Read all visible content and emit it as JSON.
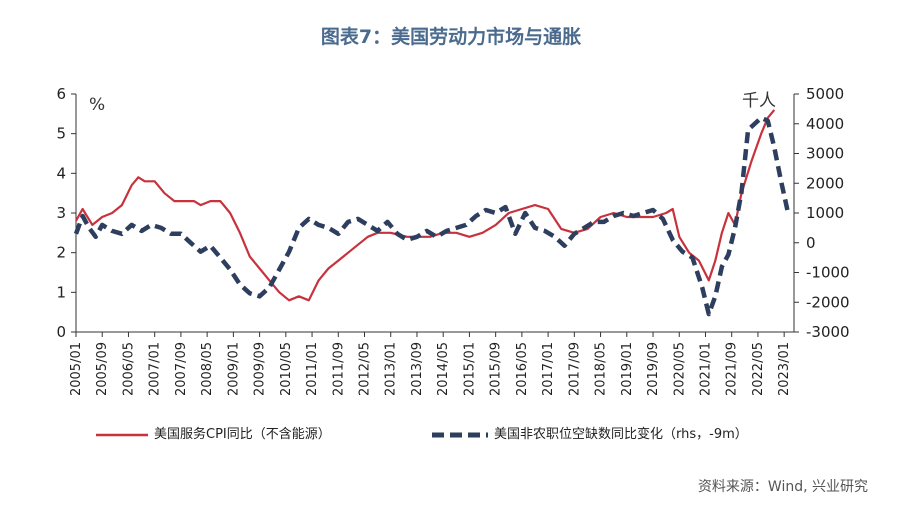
{
  "title": "图表7：美国劳动力市场与通胀",
  "source": "资料来源：Wind, 兴业研究",
  "chart_data": {
    "type": "line",
    "left_unit": "%",
    "right_unit": "千人",
    "left_axis": {
      "ylim": [
        0,
        6
      ],
      "ticks": [
        "0",
        "1",
        "2",
        "3",
        "4",
        "5",
        "6"
      ]
    },
    "right_axis": {
      "ylim": [
        -3000,
        5000
      ],
      "ticks": [
        "-3000",
        "-2000",
        "-1000",
        "0",
        "1000",
        "2000",
        "3000",
        "4000",
        "5000"
      ]
    },
    "x_ticks": [
      "2005/01",
      "2005/09",
      "2006/05",
      "2007/01",
      "2007/09",
      "2008/05",
      "2009/01",
      "2009/09",
      "2010/05",
      "2011/01",
      "2011/09",
      "2012/05",
      "2013/01",
      "2013/09",
      "2014/05",
      "2015/01",
      "2015/09",
      "2016/05",
      "2017/01",
      "2017/09",
      "2018/05",
      "2019/01",
      "2019/09",
      "2020/05",
      "2021/01",
      "2021/09",
      "2022/05",
      "2023/01"
    ],
    "series": [
      {
        "name": "美国服务CPI同比（不含能源）",
        "axis": "left",
        "color": "#c8323c",
        "style": "solid",
        "points": [
          [
            "2005/01",
            2.8
          ],
          [
            "2005/03",
            3.1
          ],
          [
            "2005/06",
            2.7
          ],
          [
            "2005/09",
            2.9
          ],
          [
            "2005/12",
            3.0
          ],
          [
            "2006/03",
            3.2
          ],
          [
            "2006/06",
            3.7
          ],
          [
            "2006/08",
            3.9
          ],
          [
            "2006/10",
            3.8
          ],
          [
            "2007/01",
            3.8
          ],
          [
            "2007/04",
            3.5
          ],
          [
            "2007/07",
            3.3
          ],
          [
            "2007/10",
            3.3
          ],
          [
            "2008/01",
            3.3
          ],
          [
            "2008/03",
            3.2
          ],
          [
            "2008/06",
            3.3
          ],
          [
            "2008/09",
            3.3
          ],
          [
            "2008/12",
            3.0
          ],
          [
            "2009/03",
            2.5
          ],
          [
            "2009/06",
            1.9
          ],
          [
            "2009/09",
            1.6
          ],
          [
            "2009/12",
            1.3
          ],
          [
            "2010/03",
            1.0
          ],
          [
            "2010/06",
            0.8
          ],
          [
            "2010/09",
            0.9
          ],
          [
            "2010/12",
            0.8
          ],
          [
            "2011/03",
            1.3
          ],
          [
            "2011/06",
            1.6
          ],
          [
            "2011/09",
            1.8
          ],
          [
            "2011/12",
            2.0
          ],
          [
            "2012/03",
            2.2
          ],
          [
            "2012/06",
            2.4
          ],
          [
            "2012/09",
            2.5
          ],
          [
            "2013/01",
            2.5
          ],
          [
            "2013/06",
            2.4
          ],
          [
            "2013/09",
            2.4
          ],
          [
            "2014/01",
            2.4
          ],
          [
            "2014/05",
            2.5
          ],
          [
            "2014/09",
            2.5
          ],
          [
            "2015/01",
            2.4
          ],
          [
            "2015/05",
            2.5
          ],
          [
            "2015/09",
            2.7
          ],
          [
            "2016/01",
            3.0
          ],
          [
            "2016/05",
            3.1
          ],
          [
            "2016/09",
            3.2
          ],
          [
            "2017/01",
            3.1
          ],
          [
            "2017/05",
            2.6
          ],
          [
            "2017/09",
            2.5
          ],
          [
            "2018/01",
            2.6
          ],
          [
            "2018/05",
            2.9
          ],
          [
            "2018/09",
            3.0
          ],
          [
            "2019/01",
            2.9
          ],
          [
            "2019/05",
            2.9
          ],
          [
            "2019/09",
            2.9
          ],
          [
            "2020/01",
            3.0
          ],
          [
            "2020/03",
            3.1
          ],
          [
            "2020/05",
            2.4
          ],
          [
            "2020/08",
            2.0
          ],
          [
            "2020/11",
            1.8
          ],
          [
            "2021/02",
            1.3
          ],
          [
            "2021/04",
            1.8
          ],
          [
            "2021/06",
            2.5
          ],
          [
            "2021/08",
            3.0
          ],
          [
            "2021/10",
            2.7
          ],
          [
            "2021/12",
            3.5
          ],
          [
            "2022/03",
            4.3
          ],
          [
            "2022/06",
            5.0
          ],
          [
            "2022/08",
            5.4
          ],
          [
            "2022/10",
            5.6
          ]
        ]
      },
      {
        "name": "美国非农职位空缺数同比变化（rhs，-9m）",
        "axis": "right",
        "color": "#2e3e5e",
        "style": "dashed",
        "points": [
          [
            "2005/01",
            300
          ],
          [
            "2005/03",
            900
          ],
          [
            "2005/05",
            500
          ],
          [
            "2005/07",
            200
          ],
          [
            "2005/09",
            600
          ],
          [
            "2005/12",
            400
          ],
          [
            "2006/03",
            300
          ],
          [
            "2006/06",
            600
          ],
          [
            "2006/09",
            400
          ],
          [
            "2006/12",
            600
          ],
          [
            "2007/03",
            500
          ],
          [
            "2007/06",
            300
          ],
          [
            "2007/09",
            300
          ],
          [
            "2007/12",
            0
          ],
          [
            "2008/03",
            -300
          ],
          [
            "2008/06",
            -100
          ],
          [
            "2008/09",
            -500
          ],
          [
            "2008/12",
            -900
          ],
          [
            "2009/03",
            -1400
          ],
          [
            "2009/06",
            -1700
          ],
          [
            "2009/09",
            -1800
          ],
          [
            "2009/12",
            -1500
          ],
          [
            "2010/03",
            -900
          ],
          [
            "2010/06",
            -300
          ],
          [
            "2010/09",
            500
          ],
          [
            "2010/12",
            800
          ],
          [
            "2011/03",
            600
          ],
          [
            "2011/06",
            500
          ],
          [
            "2011/09",
            300
          ],
          [
            "2011/12",
            700
          ],
          [
            "2012/03",
            800
          ],
          [
            "2012/06",
            600
          ],
          [
            "2012/09",
            400
          ],
          [
            "2012/12",
            700
          ],
          [
            "2013/03",
            300
          ],
          [
            "2013/06",
            100
          ],
          [
            "2013/09",
            200
          ],
          [
            "2013/12",
            400
          ],
          [
            "2014/03",
            200
          ],
          [
            "2014/06",
            400
          ],
          [
            "2014/09",
            500
          ],
          [
            "2014/12",
            600
          ],
          [
            "2015/03",
            900
          ],
          [
            "2015/06",
            1100
          ],
          [
            "2015/09",
            1000
          ],
          [
            "2015/12",
            1200
          ],
          [
            "2016/03",
            300
          ],
          [
            "2016/06",
            1000
          ],
          [
            "2016/09",
            500
          ],
          [
            "2016/12",
            400
          ],
          [
            "2017/03",
            200
          ],
          [
            "2017/06",
            -100
          ],
          [
            "2017/09",
            300
          ],
          [
            "2017/12",
            500
          ],
          [
            "2018/03",
            700
          ],
          [
            "2018/06",
            700
          ],
          [
            "2018/09",
            900
          ],
          [
            "2018/12",
            1000
          ],
          [
            "2019/03",
            900
          ],
          [
            "2019/06",
            1000
          ],
          [
            "2019/09",
            1100
          ],
          [
            "2019/12",
            800
          ],
          [
            "2020/03",
            100
          ],
          [
            "2020/06",
            -300
          ],
          [
            "2020/09",
            -500
          ],
          [
            "2020/12",
            -1500
          ],
          [
            "2021/02",
            -2400
          ],
          [
            "2021/04",
            -1800
          ],
          [
            "2021/06",
            -800
          ],
          [
            "2021/08",
            -400
          ],
          [
            "2021/10",
            500
          ],
          [
            "2021/12",
            1700
          ],
          [
            "2022/02",
            3800
          ],
          [
            "2022/04",
            4000
          ],
          [
            "2022/06",
            4200
          ],
          [
            "2022/08",
            4100
          ],
          [
            "2022/10",
            3200
          ],
          [
            "2022/12",
            2100
          ],
          [
            "2023/02",
            1100
          ]
        ]
      }
    ]
  }
}
